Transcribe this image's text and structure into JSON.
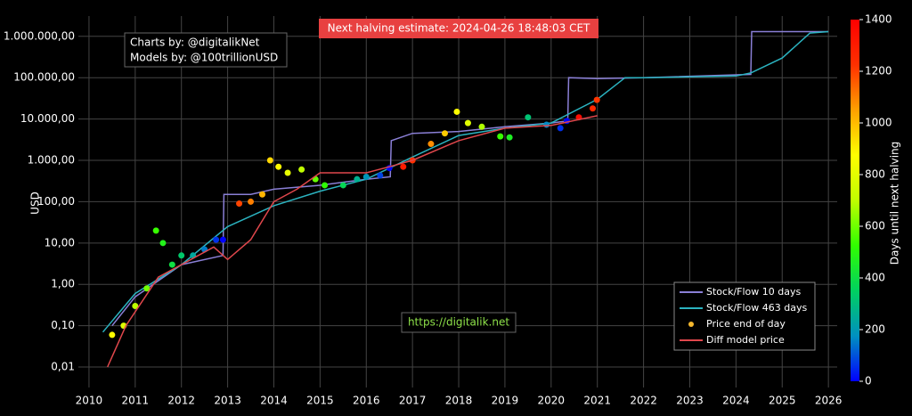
{
  "chart_data": {
    "type": "line",
    "title": "Next halving estimate: 2024-04-26 18:48:03 CET",
    "credits": [
      "Charts by: @digitalikNet",
      "Models by: @100trillionUSD"
    ],
    "url": "https://digitalik.net",
    "ylabel": "USD",
    "log_y": true,
    "grid": true,
    "legend": "bottom-right",
    "xlim": [
      2009.77,
      2026.19
    ],
    "xticks": [
      2010,
      2011,
      2012,
      2013,
      2014,
      2015,
      2016,
      2017,
      2018,
      2019,
      2020,
      2021,
      2022,
      2023,
      2024,
      2025,
      2026
    ],
    "ylim": [
      0.0032,
      3100000
    ],
    "yticks": [
      {
        "value": 0.01,
        "label": "0,01"
      },
      {
        "value": 0.1,
        "label": "0,10"
      },
      {
        "value": 1,
        "label": "1,00"
      },
      {
        "value": 10,
        "label": "10,00"
      },
      {
        "value": 100,
        "label": "100,00"
      },
      {
        "value": 1000,
        "label": "1.000,00"
      },
      {
        "value": 10000,
        "label": "10.000,00"
      },
      {
        "value": 100000,
        "label": "100.000,00"
      },
      {
        "value": 1000000,
        "label": "1.000.000,00"
      }
    ],
    "colorbar": {
      "title": "Days until next halving",
      "clim": [
        0,
        1400
      ],
      "ticks": [
        0,
        200,
        400,
        600,
        800,
        1000,
        1200,
        1400
      ],
      "colorscale": [
        "#0000ff",
        "#0090c0",
        "#00d060",
        "#30ff00",
        "#c0ff00",
        "#ffff00",
        "#ffa000",
        "#ff3000",
        "#ff0000"
      ]
    },
    "series": [
      {
        "name": "Stock/Flow 10 days",
        "kind": "line",
        "color": "#8a7fd6",
        "x": [
          2010.5,
          2011,
          2012,
          2012.9,
          2012.92,
          2013.5,
          2014,
          2015,
          2016,
          2016.52,
          2016.54,
          2017,
          2018,
          2019,
          2020,
          2020.36,
          2020.38,
          2021,
          2022,
          2024.32,
          2024.34,
          2026
        ],
        "values": [
          0.1,
          0.5,
          3,
          5,
          150,
          150,
          200,
          250,
          350,
          400,
          3000,
          4500,
          5000,
          6500,
          8000,
          9000,
          100000,
          95000,
          100000,
          120000,
          1300000,
          1300000
        ]
      },
      {
        "name": "Stock/Flow 463 days",
        "kind": "line",
        "color": "#2bb3c0",
        "x": [
          2010.3,
          2011,
          2012,
          2013,
          2014,
          2015,
          2016,
          2017,
          2018,
          2019,
          2020,
          2021,
          2021.6,
          2022,
          2024,
          2024.32,
          2025,
          2025.6,
          2026
        ],
        "values": [
          0.07,
          0.6,
          3,
          25,
          80,
          180,
          350,
          1200,
          4000,
          6000,
          8000,
          30000,
          100000,
          100000,
          110000,
          130000,
          300000,
          1200000,
          1300000
        ]
      },
      {
        "name": "Price end of day",
        "kind": "points",
        "color": "#f5b82e",
        "x": [
          2010.5,
          2010.75,
          2011.0,
          2011.25,
          2011.45,
          2011.6,
          2011.8,
          2012.0,
          2012.25,
          2012.5,
          2012.75,
          2012.9,
          2013.25,
          2013.5,
          2013.75,
          2013.92,
          2014.1,
          2014.3,
          2014.6,
          2014.9,
          2015.1,
          2015.5,
          2015.8,
          2016.0,
          2016.3,
          2016.5,
          2016.8,
          2017.0,
          2017.4,
          2017.7,
          2017.96,
          2018.2,
          2018.5,
          2018.9,
          2019.1,
          2019.5,
          2019.9,
          2020.2,
          2020.34,
          2020.6,
          2020.9,
          2020.99
        ],
        "values": [
          0.06,
          0.1,
          0.3,
          0.8,
          20,
          10,
          3,
          5,
          5,
          7,
          12,
          12,
          90,
          100,
          150,
          1000,
          700,
          500,
          600,
          350,
          250,
          250,
          350,
          400,
          430,
          650,
          700,
          1000,
          2500,
          4500,
          15000,
          8000,
          6500,
          3800,
          3600,
          11000,
          7300,
          6000,
          9000,
          11000,
          18000,
          29000
        ],
        "color_values": [
          880,
          788,
          697,
          606,
          533,
          478,
          405,
          332,
          241,
          150,
          58,
          4,
          1194,
          1102,
          1011,
          949,
          884,
          811,
          701,
          591,
          518,
          372,
          263,
          190,
          80,
          7,
          1299,
          1226,
          1080,
          971,
          876,
          788,
          679,
          533,
          460,
          314,
          168,
          58,
          7,
          1358,
          1252,
          1215
        ]
      },
      {
        "name": "Diff model price",
        "kind": "line",
        "color": "#e0474c",
        "x": [
          2010.4,
          2010.8,
          2011.5,
          2012,
          2012.7,
          2013,
          2013.5,
          2014,
          2014.5,
          2015,
          2016,
          2016.5,
          2017,
          2018,
          2019,
          2020,
          2021
        ],
        "values": [
          0.01,
          0.1,
          1.5,
          3,
          8,
          4,
          12,
          100,
          200,
          500,
          500,
          700,
          1000,
          3000,
          6000,
          7000,
          12000
        ]
      }
    ]
  }
}
